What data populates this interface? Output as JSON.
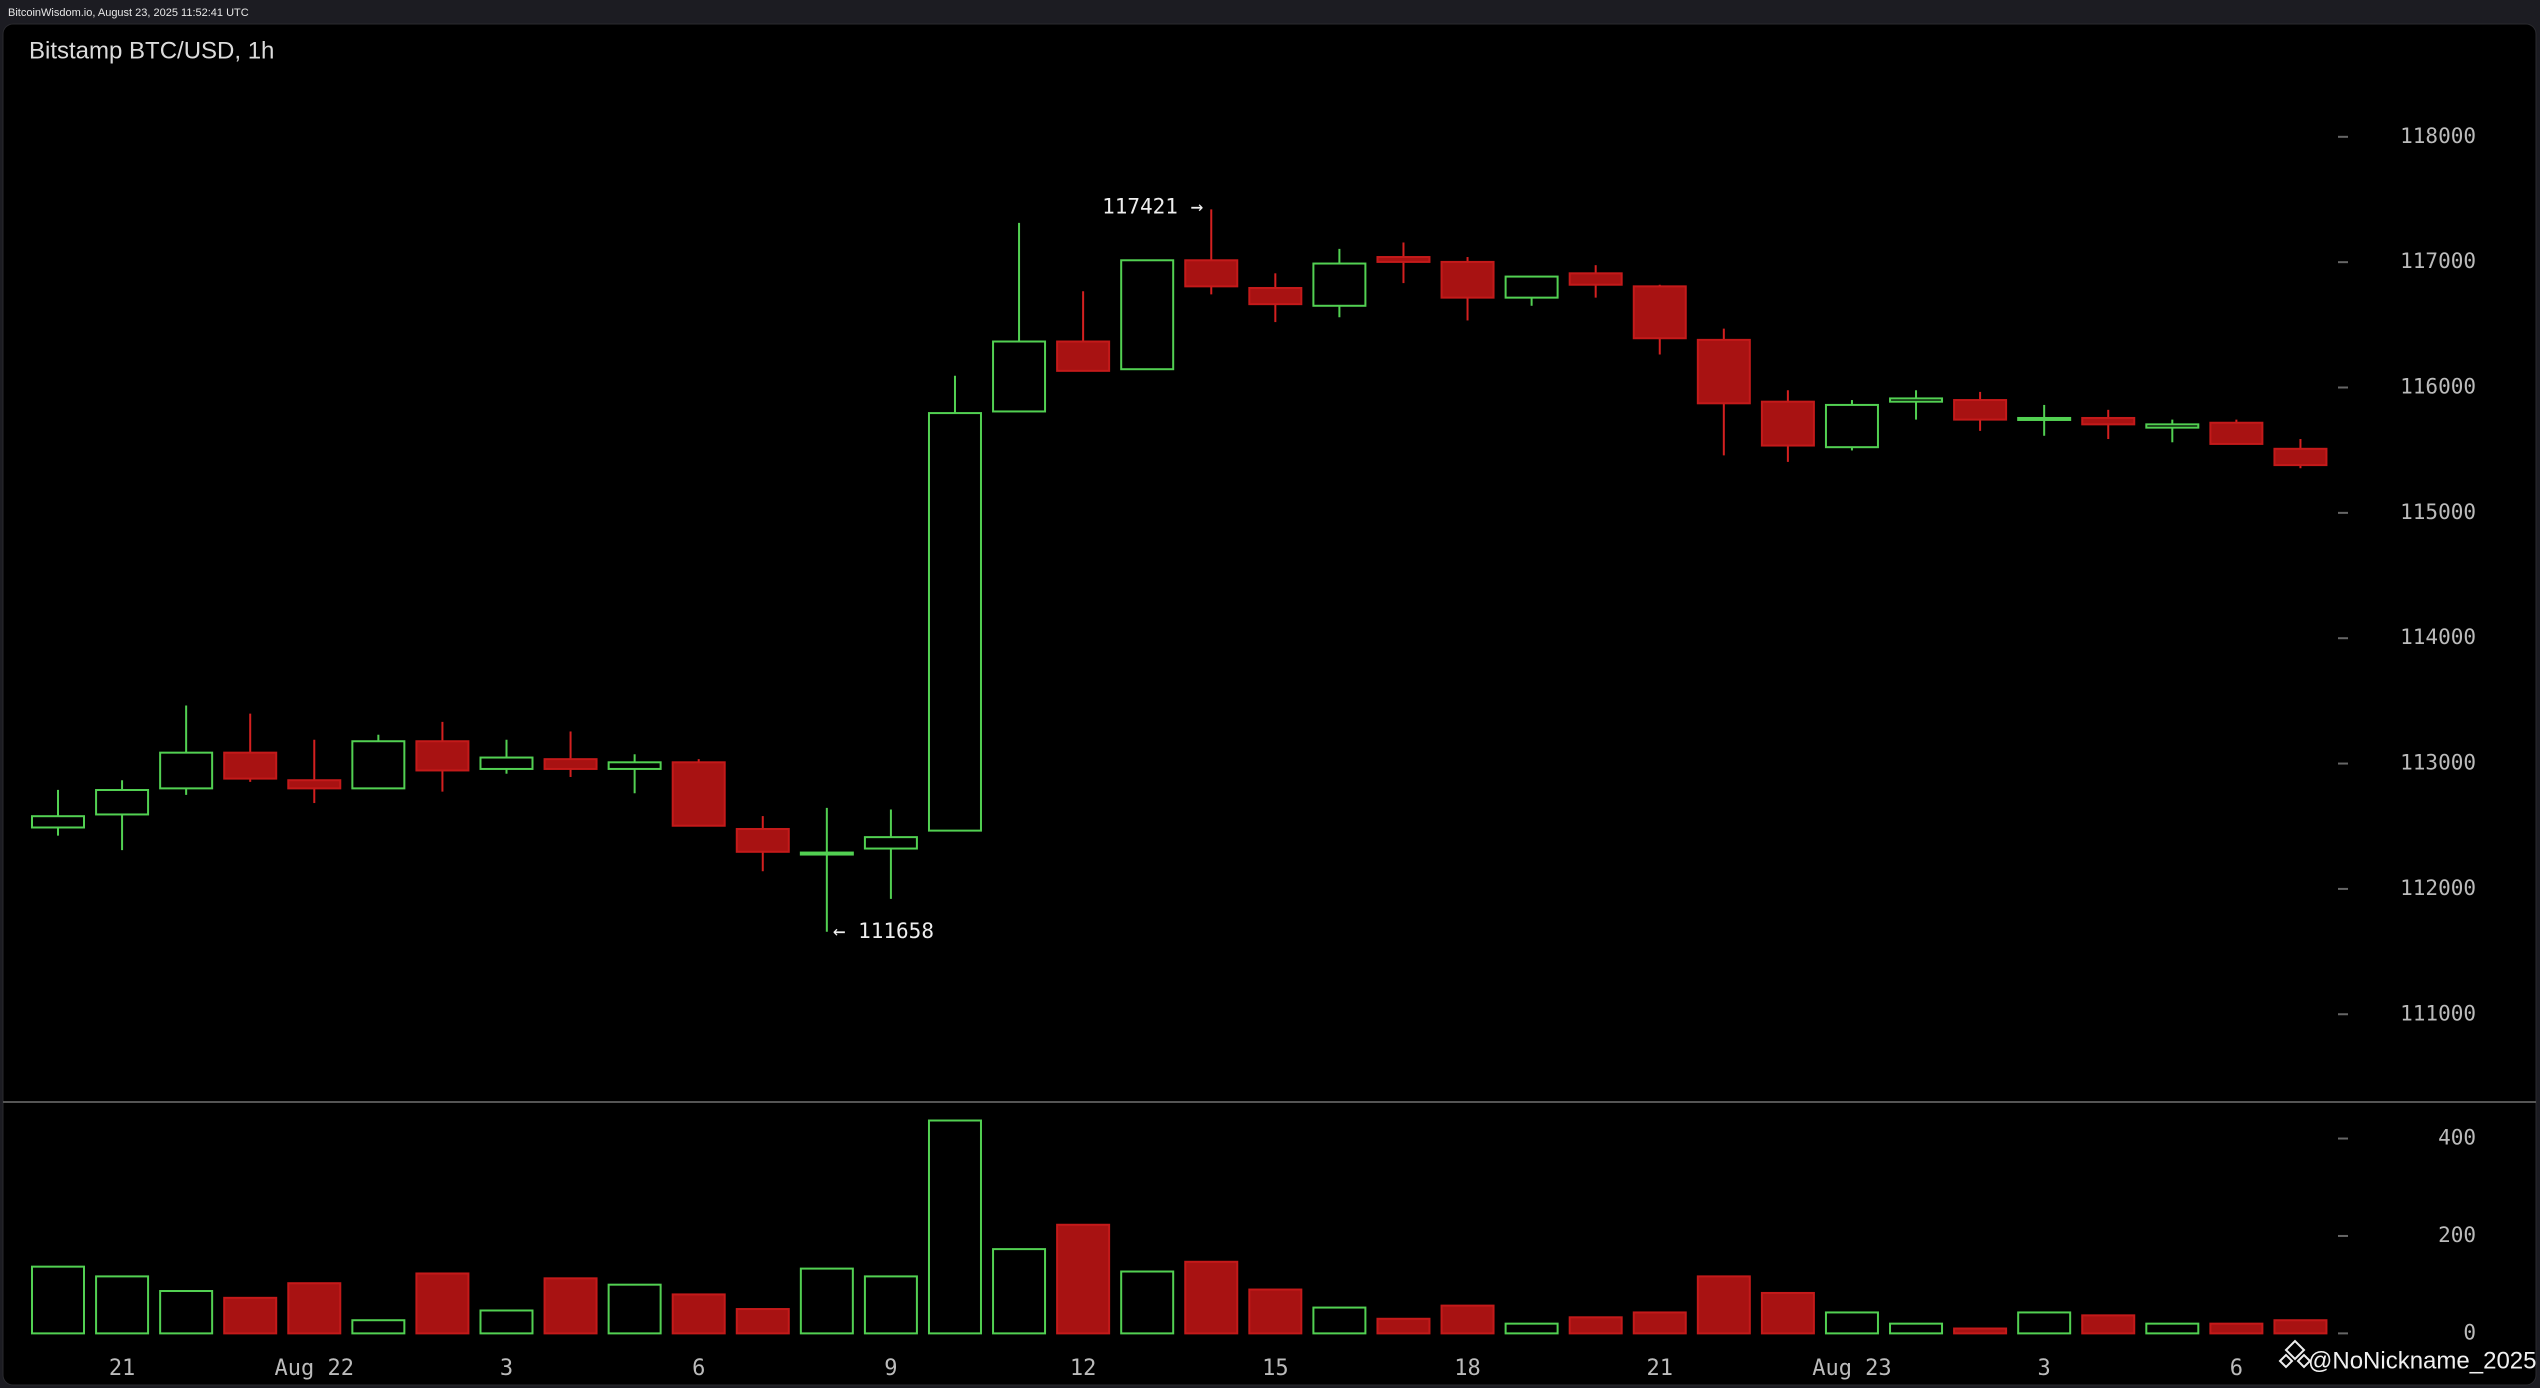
{
  "header": "BitcoinWisdom.io, August 23, 2025 11:52:41 UTC",
  "watermark": "@NoNickname_2025",
  "chart_data": [
    {
      "type": "candlestick",
      "title": "Bitstamp BTC/USD, 1h",
      "open": [
        112490,
        112594,
        112802,
        113087,
        112867,
        112802,
        113178,
        112957,
        113035,
        112957,
        113010,
        112478,
        112283,
        112322,
        112465,
        115809,
        116367,
        116146,
        117015,
        116794,
        116652,
        117041,
        117002,
        116717,
        116911,
        116807,
        116380,
        115887,
        115524,
        115887,
        115900,
        115744,
        115757,
        115680,
        115719,
        115511
      ],
      "high": [
        112790,
        112867,
        113463,
        113398,
        113190,
        113230,
        113333,
        113190,
        113256,
        113074,
        113035,
        112581,
        112646,
        112633,
        116094,
        117313,
        116768,
        117015,
        117421,
        116911,
        117106,
        117157,
        117041,
        116885,
        116976,
        116820,
        116470,
        115978,
        115900,
        115978,
        115965,
        115861,
        115822,
        115744,
        115744,
        115589
      ],
      "low": [
        112425,
        112309,
        112750,
        112854,
        112685,
        112802,
        112776,
        112919,
        112893,
        112763,
        112504,
        112141,
        111658,
        111920,
        112465,
        115809,
        116133,
        116146,
        116743,
        116522,
        116561,
        116833,
        116535,
        116652,
        116717,
        116263,
        115459,
        115407,
        115498,
        115744,
        115654,
        115615,
        115589,
        115563,
        115550,
        115356
      ],
      "close": [
        112580,
        112789,
        113087,
        112880,
        112802,
        113178,
        112945,
        113048,
        112957,
        113010,
        112504,
        112296,
        112290,
        112413,
        115796,
        116367,
        116133,
        117015,
        116807,
        116665,
        116989,
        117002,
        116717,
        116885,
        116820,
        116393,
        115874,
        115537,
        115861,
        115913,
        115744,
        115757,
        115706,
        115706,
        115550,
        115381
      ],
      "up_color": "#52d052",
      "down_color": "#a81212",
      "ylim": [
        110300,
        118900
      ],
      "yticks": [
        111000,
        112000,
        113000,
        114000,
        115000,
        116000,
        117000,
        118000
      ],
      "annotations": [
        {
          "text": "117421 →"
        },
        {
          "text": "← 111658"
        }
      ]
    },
    {
      "type": "bar",
      "categories": [
        null,
        "21",
        null,
        null,
        "Aug 22",
        null,
        null,
        "3",
        null,
        null,
        "6",
        null,
        null,
        "9",
        null,
        null,
        "12",
        null,
        null,
        "15",
        null,
        null,
        "18",
        null,
        null,
        "21",
        null,
        null,
        "Aug 23",
        null,
        null,
        "3",
        null,
        null,
        "6",
        null
      ],
      "values": [
        137,
        117,
        87,
        73,
        103,
        27,
        123,
        47,
        113,
        100,
        80,
        50,
        133,
        117,
        437,
        173,
        223,
        127,
        147,
        90,
        53,
        30,
        57,
        20,
        33,
        43,
        117,
        83,
        43,
        20,
        10,
        43,
        37,
        20,
        20,
        27
      ],
      "ylim": [
        -30,
        475
      ],
      "yticks": [
        0,
        200,
        400
      ]
    }
  ]
}
